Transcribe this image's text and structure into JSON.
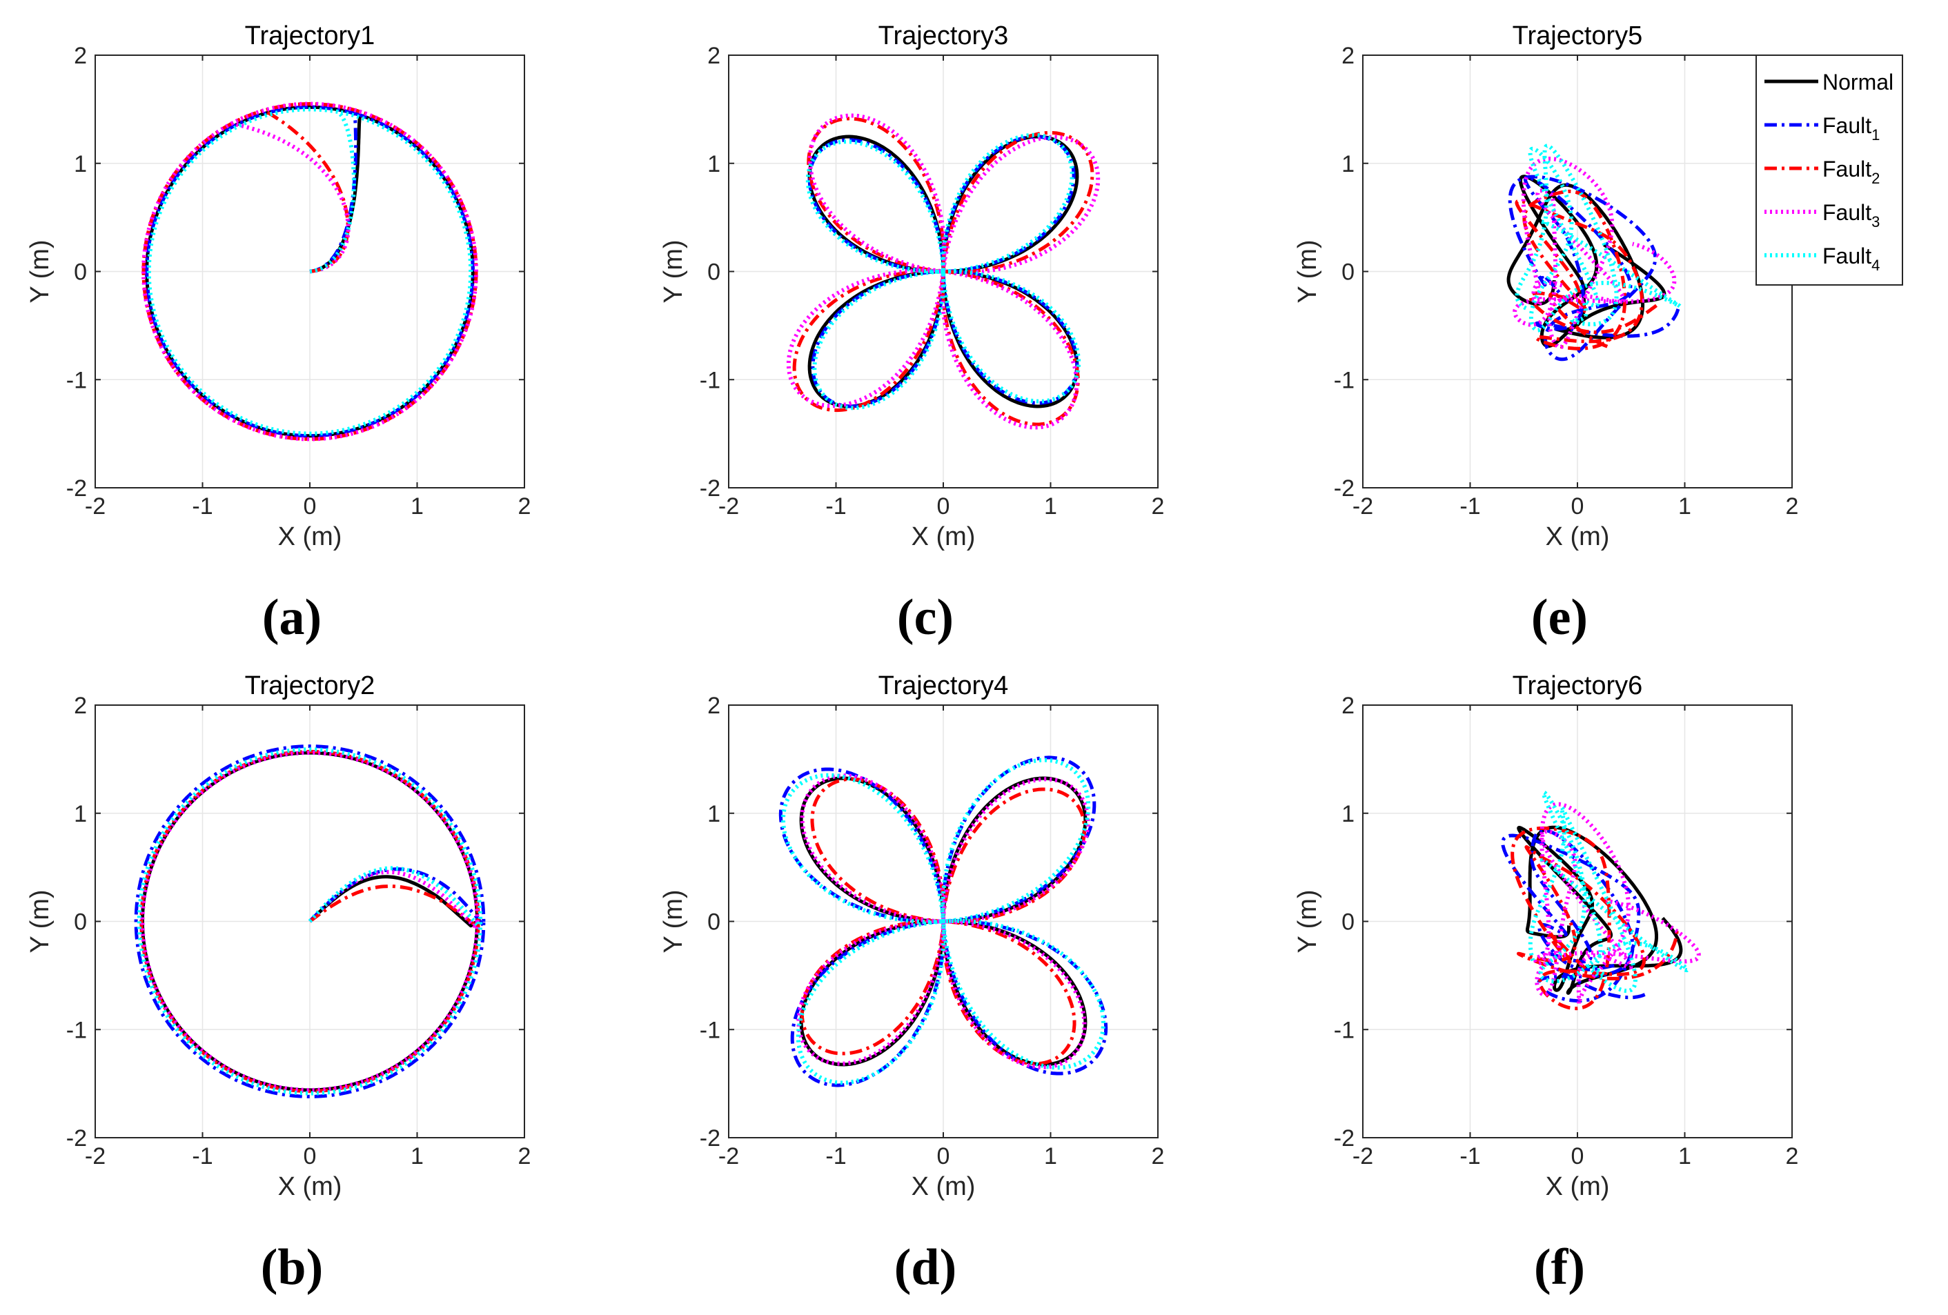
{
  "chart_data": [
    {
      "type": "line",
      "title": "Trajectory1",
      "panel_label": "(a)",
      "xlabel": "X (m)",
      "ylabel": "Y (m)",
      "xlim": [
        -2,
        2
      ],
      "ylim": [
        -2,
        2
      ],
      "xticks": [
        "-2",
        "-1",
        "0",
        "1",
        "2"
      ],
      "yticks": [
        "-2",
        "-1",
        "0",
        "1",
        "2"
      ],
      "grid": true,
      "pattern": "circle",
      "legend": null,
      "series": [
        {
          "name": "Normal",
          "color": "#000000",
          "style": "solid",
          "radius": 1.52,
          "approach": {
            "dx": 0.48,
            "cy": 0.85,
            "end_angle_deg": 72
          }
        },
        {
          "name": "Fault_1",
          "color": "#0000ff",
          "style": "dashdot",
          "radius": 1.52,
          "approach": {
            "dx": 0.47,
            "cy": 0.88,
            "end_angle_deg": 74
          }
        },
        {
          "name": "Fault_2",
          "color": "#ff0000",
          "style": "dashdot",
          "radius": 1.55,
          "approach": {
            "dx": 0.52,
            "cy": 0.62,
            "end_angle_deg": 106
          }
        },
        {
          "name": "Fault_3",
          "color": "#ff00ff",
          "style": "dotted",
          "radius": 1.55,
          "approach": {
            "dx": 0.55,
            "cy": 0.7,
            "end_angle_deg": 118
          }
        },
        {
          "name": "Fault_4",
          "color": "#00ffff",
          "style": "dotted",
          "radius": 1.5,
          "approach": {
            "dx": 0.5,
            "cy": 0.85,
            "end_angle_deg": 80
          }
        }
      ]
    },
    {
      "type": "line",
      "title": "Trajectory2",
      "panel_label": "(b)",
      "xlabel": "X (m)",
      "ylabel": "Y (m)",
      "xlim": [
        -2,
        2
      ],
      "ylim": [
        -2,
        2
      ],
      "xticks": [
        "-2",
        "-1",
        "0",
        "1",
        "2"
      ],
      "yticks": [
        "-2",
        "-1",
        "0",
        "1",
        "2"
      ],
      "grid": true,
      "pattern": "circle2",
      "legend": null,
      "series": [
        {
          "name": "Normal",
          "color": "#000000",
          "style": "solid",
          "radius": 1.56,
          "bump": {
            "peak": 0.47,
            "end_x": 1.5,
            "bulge": 0.0
          }
        },
        {
          "name": "Fault_1",
          "color": "#0000ff",
          "style": "dashdot",
          "radius": 1.62,
          "bump": {
            "peak": 0.55,
            "end_x": 1.62,
            "bulge": 0.12
          }
        },
        {
          "name": "Fault_2",
          "color": "#ff0000",
          "style": "dashdot",
          "radius": 1.57,
          "bump": {
            "peak": 0.37,
            "end_x": 1.55,
            "bulge": 0.03
          }
        },
        {
          "name": "Fault_3",
          "color": "#ff00ff",
          "style": "dotted",
          "radius": 1.56,
          "bump": {
            "peak": 0.52,
            "end_x": 1.53,
            "bulge": 0.02
          }
        },
        {
          "name": "Fault_4",
          "color": "#00ffff",
          "style": "dotted",
          "radius": 1.59,
          "bump": {
            "peak": 0.56,
            "end_x": 1.57,
            "bulge": 0.06
          }
        }
      ]
    },
    {
      "type": "line",
      "title": "Trajectory3",
      "panel_label": "(c)",
      "xlabel": "X (m)",
      "ylabel": "Y (m)",
      "xlim": [
        -2,
        2
      ],
      "ylim": [
        -2,
        2
      ],
      "xticks": [
        "-2",
        "-1",
        "0",
        "1",
        "2"
      ],
      "yticks": [
        "-2",
        "-1",
        "0",
        "1",
        "2"
      ],
      "grid": true,
      "pattern": "rose",
      "legend": null,
      "series": [
        {
          "name": "Normal",
          "color": "#000000",
          "style": "solid",
          "radius": 1.62,
          "rot_deg": 0,
          "sx": 1.0,
          "sy": 1.0
        },
        {
          "name": "Fault_1",
          "color": "#0000ff",
          "style": "dashdot",
          "radius": 1.6,
          "rot_deg": 1,
          "sx": 1.0,
          "sy": 1.0
        },
        {
          "name": "Fault_2",
          "color": "#ff0000",
          "style": "dashdot",
          "radius": 1.72,
          "rot_deg": -4,
          "sx": 1.0,
          "sy": 1.02
        },
        {
          "name": "Fault_3",
          "color": "#ff00ff",
          "style": "dotted",
          "radius": 1.75,
          "rot_deg": -6,
          "sx": 1.0,
          "sy": 1.0
        },
        {
          "name": "Fault_4",
          "color": "#00ffff",
          "style": "dotted",
          "radius": 1.6,
          "rot_deg": 2,
          "sx": 1.0,
          "sy": 1.0
        }
      ]
    },
    {
      "type": "line",
      "title": "Trajectory4",
      "panel_label": "(d)",
      "xlabel": "X (m)",
      "ylabel": "Y (m)",
      "xlim": [
        -2,
        2
      ],
      "ylim": [
        -2,
        2
      ],
      "xticks": [
        "-2",
        "-1",
        "0",
        "1",
        "2"
      ],
      "yticks": [
        "-2",
        "-1",
        "0",
        "1",
        "2"
      ],
      "grid": true,
      "pattern": "rose",
      "legend": null,
      "series": [
        {
          "name": "Normal",
          "color": "#000000",
          "style": "solid",
          "radius": 1.72,
          "rot_deg": 0,
          "sx": 1.0,
          "sy": 1.0
        },
        {
          "name": "Fault_1",
          "color": "#0000ff",
          "style": "dashdot",
          "radius": 1.9,
          "rot_deg": 3,
          "sx": 1.0,
          "sy": 1.0
        },
        {
          "name": "Fault_2",
          "color": "#ff0000",
          "style": "dashdot",
          "radius": 1.65,
          "rot_deg": -3,
          "sx": 1.0,
          "sy": 1.0
        },
        {
          "name": "Fault_3",
          "color": "#ff00ff",
          "style": "dotted",
          "radius": 1.73,
          "rot_deg": -1,
          "sx": 1.0,
          "sy": 1.0
        },
        {
          "name": "Fault_4",
          "color": "#00ffff",
          "style": "dotted",
          "radius": 1.85,
          "rot_deg": 4,
          "sx": 1.0,
          "sy": 1.0
        }
      ]
    },
    {
      "type": "line",
      "title": "Trajectory5",
      "panel_label": "(e)",
      "xlabel": "X (m)",
      "ylabel": "Y (m)",
      "xlim": [
        -2,
        2
      ],
      "ylim": [
        -2,
        2
      ],
      "xticks": [
        "-2",
        "-1",
        "0",
        "1",
        "2"
      ],
      "yticks": [
        "-2",
        "-1",
        "0",
        "1",
        "2"
      ],
      "grid": true,
      "pattern": "tangle",
      "legend": {
        "position": "top-right",
        "entries": [
          {
            "base": "Normal",
            "sub": "",
            "color": "#000000",
            "style": "solid"
          },
          {
            "base": "Fault",
            "sub": "1",
            "color": "#0000ff",
            "style": "dashdot"
          },
          {
            "base": "Fault",
            "sub": "2",
            "color": "#ff0000",
            "style": "dashdot"
          },
          {
            "base": "Fault",
            "sub": "3",
            "color": "#ff00ff",
            "style": "dotted"
          },
          {
            "base": "Fault",
            "sub": "4",
            "color": "#00ffff",
            "style": "dotted"
          }
        ]
      },
      "series": [
        {
          "name": "Normal",
          "color": "#000000",
          "style": "solid",
          "seed": 0.0,
          "ax": 0.55,
          "ay": 0.42,
          "cx": -0.05,
          "cy": -0.05
        },
        {
          "name": "Fault_1",
          "color": "#0000ff",
          "style": "dashdot",
          "seed": 0.9,
          "ax": 0.6,
          "ay": 0.5,
          "cx": 0.0,
          "cy": 0.0
        },
        {
          "name": "Fault_2",
          "color": "#ff0000",
          "style": "dashdot",
          "seed": 1.7,
          "ax": 0.58,
          "ay": 0.46,
          "cx": 0.02,
          "cy": -0.05
        },
        {
          "name": "Fault_3",
          "color": "#ff00ff",
          "style": "dotted",
          "seed": 2.6,
          "ax": 0.52,
          "ay": 0.48,
          "cx": -0.08,
          "cy": 0.05
        },
        {
          "name": "Fault_4",
          "color": "#00ffff",
          "style": "dotted",
          "seed": 3.4,
          "ax": 0.6,
          "ay": 0.44,
          "cx": -0.05,
          "cy": 0.05
        }
      ]
    },
    {
      "type": "line",
      "title": "Trajectory6",
      "panel_label": "(f)",
      "xlabel": "X (m)",
      "ylabel": "Y (m)",
      "xlim": [
        -2,
        2
      ],
      "ylim": [
        -2,
        2
      ],
      "xticks": [
        "-2",
        "-1",
        "0",
        "1",
        "2"
      ],
      "yticks": [
        "-2",
        "-1",
        "0",
        "1",
        "2"
      ],
      "grid": true,
      "pattern": "tangle",
      "legend": null,
      "series": [
        {
          "name": "Normal",
          "color": "#000000",
          "style": "solid",
          "seed": 0.4,
          "ax": 0.58,
          "ay": 0.42,
          "cx": 0.02,
          "cy": -0.02
        },
        {
          "name": "Fault_1",
          "color": "#0000ff",
          "style": "dashdot",
          "seed": 1.3,
          "ax": 0.62,
          "ay": 0.45,
          "cx": 0.0,
          "cy": 0.0
        },
        {
          "name": "Fault_2",
          "color": "#ff0000",
          "style": "dashdot",
          "seed": 2.1,
          "ax": 0.6,
          "ay": 0.46,
          "cx": -0.02,
          "cy": -0.02
        },
        {
          "name": "Fault_3",
          "color": "#ff00ff",
          "style": "dotted",
          "seed": 2.9,
          "ax": 0.58,
          "ay": 0.48,
          "cx": 0.05,
          "cy": -0.05
        },
        {
          "name": "Fault_4",
          "color": "#00ffff",
          "style": "dotted",
          "seed": 3.7,
          "ax": 0.64,
          "ay": 0.44,
          "cx": 0.08,
          "cy": -0.02
        }
      ]
    }
  ]
}
